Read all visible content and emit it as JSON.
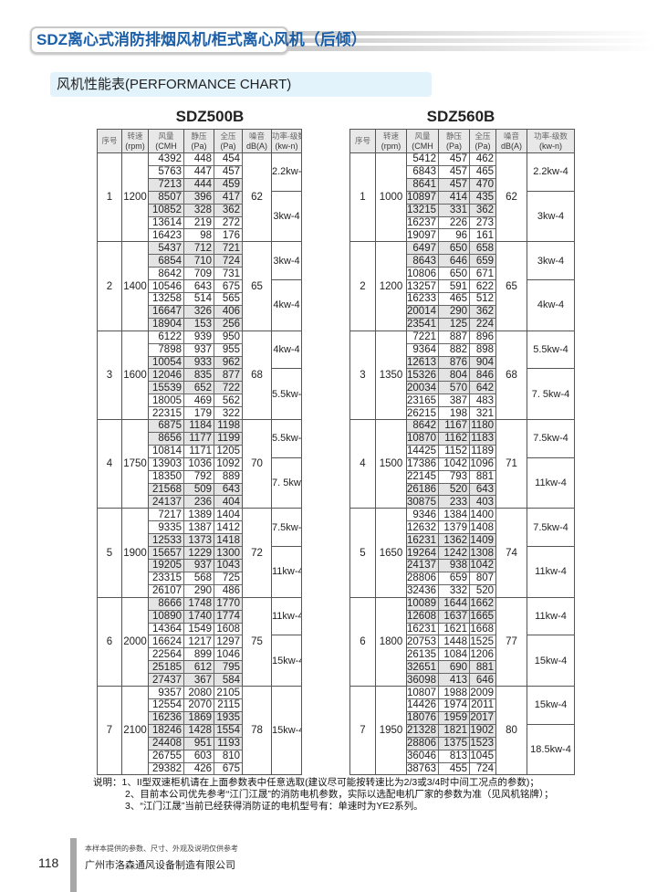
{
  "header": {
    "title": "SDZ离心式消防排烟风机/柜式离心风机（后倾）",
    "subtitle": "风机性能表(PERFORMANCE CHART)"
  },
  "columns": [
    {
      "cn": "序号",
      "en": ""
    },
    {
      "cn": "转速",
      "en": "(rpm)"
    },
    {
      "cn": "风量",
      "en": "(CMH"
    },
    {
      "cn": "静压",
      "en": "(Pa)"
    },
    {
      "cn": "全压",
      "en": "(Pa)"
    },
    {
      "cn": "噪音",
      "en": "dB(A)"
    },
    {
      "cn": "功率-级数",
      "en": "(kw-n)"
    }
  ],
  "tables": [
    {
      "model": "SDZ500B",
      "groups": [
        {
          "no": "1",
          "rpm": "1200",
          "noise": "62",
          "rows": [
            [
              "4392",
              "448",
              "454"
            ],
            [
              "5763",
              "447",
              "457"
            ],
            [
              "7213",
              "444",
              "459"
            ],
            [
              "8507",
              "396",
              "417"
            ],
            [
              "10852",
              "328",
              "362"
            ],
            [
              "13614",
              "219",
              "272"
            ],
            [
              "16423",
              "98",
              "176"
            ]
          ],
          "motors": [
            {
              "label": "2.2kw-4",
              "span": 3
            },
            {
              "label": "3kw-4",
              "span": 4
            }
          ]
        },
        {
          "no": "2",
          "rpm": "1400",
          "noise": "65",
          "rows": [
            [
              "5437",
              "712",
              "721"
            ],
            [
              "6854",
              "710",
              "724"
            ],
            [
              "8642",
              "709",
              "731"
            ],
            [
              "10546",
              "643",
              "675"
            ],
            [
              "13258",
              "514",
              "565"
            ],
            [
              "16647",
              "326",
              "406"
            ],
            [
              "18904",
              "153",
              "256"
            ]
          ],
          "motors": [
            {
              "label": "3kw-4",
              "span": 3
            },
            {
              "label": "4kw-4",
              "span": 4
            }
          ]
        },
        {
          "no": "3",
          "rpm": "1600",
          "noise": "68",
          "rows": [
            [
              "6122",
              "939",
              "950"
            ],
            [
              "7898",
              "937",
              "955"
            ],
            [
              "10054",
              "933",
              "962"
            ],
            [
              "12046",
              "835",
              "877"
            ],
            [
              "15539",
              "652",
              "722"
            ],
            [
              "18005",
              "469",
              "562"
            ],
            [
              "22315",
              "179",
              "322"
            ]
          ],
          "motors": [
            {
              "label": "4kw-4",
              "span": 3
            },
            {
              "label": "5.5kw-4",
              "span": 4
            }
          ]
        },
        {
          "no": "4",
          "rpm": "1750",
          "noise": "70",
          "rows": [
            [
              "6875",
              "1184",
              "1198"
            ],
            [
              "8656",
              "1177",
              "1199"
            ],
            [
              "10814",
              "1171",
              "1205"
            ],
            [
              "13903",
              "1036",
              "1092"
            ],
            [
              "18350",
              "792",
              "889"
            ],
            [
              "21568",
              "509",
              "643"
            ],
            [
              "24137",
              "236",
              "404"
            ]
          ],
          "motors": [
            {
              "label": "5.5kw-4",
              "span": 3
            },
            {
              "label": "7. 5kw-4",
              "span": 4
            }
          ]
        },
        {
          "no": "5",
          "rpm": "1900",
          "noise": "72",
          "rows": [
            [
              "7217",
              "1389",
              "1404"
            ],
            [
              "9335",
              "1387",
              "1412"
            ],
            [
              "12533",
              "1373",
              "1418"
            ],
            [
              "15657",
              "1229",
              "1300"
            ],
            [
              "19205",
              "937",
              "1043"
            ],
            [
              "23315",
              "568",
              "725"
            ],
            [
              "26107",
              "290",
              "486"
            ]
          ],
          "motors": [
            {
              "label": "7.5kw-4",
              "span": 3
            },
            {
              "label": "11kw-4",
              "span": 4
            }
          ]
        },
        {
          "no": "6",
          "rpm": "2000",
          "noise": "75",
          "rows": [
            [
              "8666",
              "1748",
              "1770"
            ],
            [
              "10890",
              "1740",
              "1774"
            ],
            [
              "14364",
              "1549",
              "1608"
            ],
            [
              "16624",
              "1217",
              "1297"
            ],
            [
              "22564",
              "899",
              "1046"
            ],
            [
              "25185",
              "612",
              "795"
            ],
            [
              "27437",
              "367",
              "584"
            ]
          ],
          "motors": [
            {
              "label": "11kw-4",
              "span": 3
            },
            {
              "label": "15kw-4",
              "span": 4
            }
          ]
        },
        {
          "no": "7",
          "rpm": "2100",
          "noise": "78",
          "rows": [
            [
              "9357",
              "2080",
              "2105"
            ],
            [
              "12554",
              "2070",
              "2115"
            ],
            [
              "16236",
              "1869",
              "1935"
            ],
            [
              "18246",
              "1428",
              "1554"
            ],
            [
              "24408",
              "951",
              "1193"
            ],
            [
              "26755",
              "603",
              "810"
            ],
            [
              "29382",
              "426",
              "675"
            ]
          ],
          "motors": [
            {
              "label": "15kw-4",
              "span": 7
            }
          ]
        }
      ]
    },
    {
      "model": "SDZ560B",
      "groups": [
        {
          "no": "1",
          "rpm": "1000",
          "noise": "62",
          "rows": [
            [
              "5412",
              "457",
              "462"
            ],
            [
              "6843",
              "457",
              "465"
            ],
            [
              "8641",
              "457",
              "470"
            ],
            [
              "10897",
              "414",
              "435"
            ],
            [
              "13215",
              "331",
              "362"
            ],
            [
              "16237",
              "226",
              "273"
            ],
            [
              "19097",
              "96",
              "161"
            ]
          ],
          "motors": [
            {
              "label": "2.2kw-4",
              "span": 3
            },
            {
              "label": "3kw-4",
              "span": 4
            }
          ]
        },
        {
          "no": "2",
          "rpm": "1200",
          "noise": "65",
          "rows": [
            [
              "6497",
              "650",
              "658"
            ],
            [
              "8643",
              "646",
              "659"
            ],
            [
              "10806",
              "650",
              "671"
            ],
            [
              "13257",
              "591",
              "622"
            ],
            [
              "16233",
              "465",
              "512"
            ],
            [
              "20014",
              "290",
              "362"
            ],
            [
              "23541",
              "125",
              "224"
            ]
          ],
          "motors": [
            {
              "label": "3kw-4",
              "span": 3
            },
            {
              "label": "4kw-4",
              "span": 4
            }
          ]
        },
        {
          "no": "3",
          "rpm": "1350",
          "noise": "68",
          "rows": [
            [
              "7221",
              "887",
              "896"
            ],
            [
              "9364",
              "882",
              "898"
            ],
            [
              "12613",
              "876",
              "904"
            ],
            [
              "15326",
              "804",
              "846"
            ],
            [
              "20034",
              "570",
              "642"
            ],
            [
              "23165",
              "387",
              "483"
            ],
            [
              "26215",
              "198",
              "321"
            ]
          ],
          "motors": [
            {
              "label": "5.5kw-4",
              "span": 3
            },
            {
              "label": "7. 5kw-4",
              "span": 4
            }
          ]
        },
        {
          "no": "4",
          "rpm": "1500",
          "noise": "71",
          "rows": [
            [
              "8642",
              "1167",
              "1180"
            ],
            [
              "10870",
              "1162",
              "1183"
            ],
            [
              "14425",
              "1152",
              "1189"
            ],
            [
              "17386",
              "1042",
              "1096"
            ],
            [
              "22145",
              "793",
              "881"
            ],
            [
              "26186",
              "520",
              "643"
            ],
            [
              "30875",
              "233",
              "403"
            ]
          ],
          "motors": [
            {
              "label": "7.5kw-4",
              "span": 3
            },
            {
              "label": "11kw-4",
              "span": 4
            }
          ]
        },
        {
          "no": "5",
          "rpm": "1650",
          "noise": "74",
          "rows": [
            [
              "9346",
              "1384",
              "1400"
            ],
            [
              "12632",
              "1379",
              "1408"
            ],
            [
              "16231",
              "1362",
              "1409"
            ],
            [
              "19264",
              "1242",
              "1308"
            ],
            [
              "24137",
              "938",
              "1042"
            ],
            [
              "28806",
              "659",
              "807"
            ],
            [
              "32436",
              "332",
              "520"
            ]
          ],
          "motors": [
            {
              "label": "7.5kw-4",
              "span": 3
            },
            {
              "label": "11kw-4",
              "span": 4
            }
          ]
        },
        {
          "no": "6",
          "rpm": "1800",
          "noise": "77",
          "rows": [
            [
              "10089",
              "1644",
              "1662"
            ],
            [
              "12608",
              "1637",
              "1665"
            ],
            [
              "16231",
              "1621",
              "1668"
            ],
            [
              "20753",
              "1448",
              "1525"
            ],
            [
              "26135",
              "1084",
              "1206"
            ],
            [
              "32651",
              "690",
              "881"
            ],
            [
              "36098",
              "413",
              "646"
            ]
          ],
          "motors": [
            {
              "label": "11kw-4",
              "span": 3
            },
            {
              "label": "15kw-4",
              "span": 4
            }
          ]
        },
        {
          "no": "7",
          "rpm": "1950",
          "noise": "80",
          "rows": [
            [
              "10807",
              "1988",
              "2009"
            ],
            [
              "14426",
              "1974",
              "2011"
            ],
            [
              "18076",
              "1959",
              "2017"
            ],
            [
              "21328",
              "1821",
              "1902"
            ],
            [
              "28806",
              "1375",
              "1523"
            ],
            [
              "36046",
              "813",
              "1045"
            ],
            [
              "38763",
              "455",
              "724"
            ]
          ],
          "motors": [
            {
              "label": "15kw-4",
              "span": 3
            },
            {
              "label": "18.5kw-4",
              "span": 4
            }
          ]
        }
      ]
    }
  ],
  "notes": [
    "说明：1、II型双速柜机请在上面参数表中任意选取(建议尽可能按转速比为2/3或3/4时中间工况点的参数)；",
    "2、目前本公司优先参考“江门江晟”的消防电机参数，实际以选配电机厂家的参数为准（见风机铭牌）；",
    "3、“江门江晟”当前已经获得消防证的电机型号有：单速时为YE2系列。"
  ],
  "footer": {
    "page": "118",
    "disclaimer": "本样本提供的参数、尺寸、外观及说明仅供参考",
    "company": "广州市洛森通风设备制造有限公司"
  }
}
